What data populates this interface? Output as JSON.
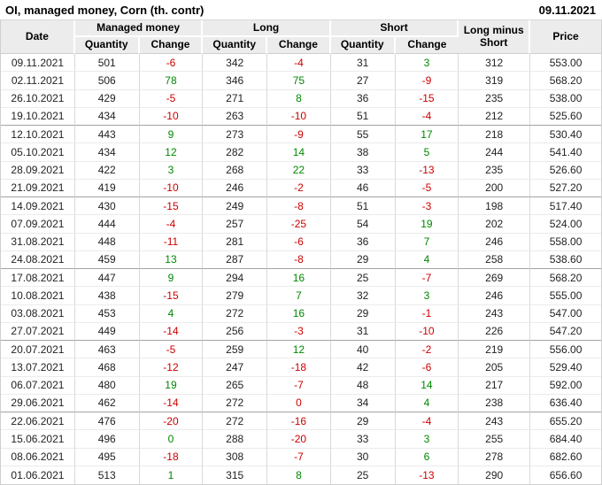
{
  "header": {
    "title": "OI, managed money, Corn (th. contr)",
    "report_date": "09.11.2021"
  },
  "colors": {
    "positive": "#008800",
    "negative": "#cc0000",
    "header_bg": "#ececec"
  },
  "table": {
    "head": {
      "date": "Date",
      "managed_money": "Managed money",
      "long": "Long",
      "short": "Short",
      "long_minus_short": "Long minus Short",
      "price": "Price",
      "quantity": "Quantity",
      "change": "Change"
    },
    "group_size": 4,
    "rows": [
      {
        "date": "09.11.2021",
        "cells": [
          [
            "501"
          ],
          [
            "-6",
            "neg"
          ],
          [
            "342"
          ],
          [
            "-4",
            "neg"
          ],
          [
            "31"
          ],
          [
            "3",
            "pos"
          ],
          [
            "312"
          ],
          [
            "553.00"
          ]
        ]
      },
      {
        "date": "02.11.2021",
        "cells": [
          [
            "506"
          ],
          [
            "78",
            "pos"
          ],
          [
            "346"
          ],
          [
            "75",
            "pos"
          ],
          [
            "27"
          ],
          [
            "-9",
            "neg"
          ],
          [
            "319"
          ],
          [
            "568.20"
          ]
        ]
      },
      {
        "date": "26.10.2021",
        "cells": [
          [
            "429"
          ],
          [
            "-5",
            "neg"
          ],
          [
            "271"
          ],
          [
            "8",
            "pos"
          ],
          [
            "36"
          ],
          [
            "-15",
            "neg"
          ],
          [
            "235"
          ],
          [
            "538.00"
          ]
        ]
      },
      {
        "date": "19.10.2021",
        "cells": [
          [
            "434"
          ],
          [
            "-10",
            "neg"
          ],
          [
            "263"
          ],
          [
            "-10",
            "neg"
          ],
          [
            "51"
          ],
          [
            "-4",
            "neg"
          ],
          [
            "212"
          ],
          [
            "525.60"
          ]
        ]
      },
      {
        "date": "12.10.2021",
        "cells": [
          [
            "443"
          ],
          [
            "9",
            "pos"
          ],
          [
            "273"
          ],
          [
            "-9",
            "neg"
          ],
          [
            "55"
          ],
          [
            "17",
            "pos"
          ],
          [
            "218"
          ],
          [
            "530.40"
          ]
        ]
      },
      {
        "date": "05.10.2021",
        "cells": [
          [
            "434"
          ],
          [
            "12",
            "pos"
          ],
          [
            "282"
          ],
          [
            "14",
            "pos"
          ],
          [
            "38"
          ],
          [
            "5",
            "pos"
          ],
          [
            "244"
          ],
          [
            "541.40"
          ]
        ]
      },
      {
        "date": "28.09.2021",
        "cells": [
          [
            "422"
          ],
          [
            "3",
            "pos"
          ],
          [
            "268"
          ],
          [
            "22",
            "pos"
          ],
          [
            "33"
          ],
          [
            "-13",
            "neg"
          ],
          [
            "235"
          ],
          [
            "526.60"
          ]
        ]
      },
      {
        "date": "21.09.2021",
        "cells": [
          [
            "419"
          ],
          [
            "-10",
            "neg"
          ],
          [
            "246"
          ],
          [
            "-2",
            "neg"
          ],
          [
            "46"
          ],
          [
            "-5",
            "neg"
          ],
          [
            "200"
          ],
          [
            "527.20"
          ]
        ]
      },
      {
        "date": "14.09.2021",
        "cells": [
          [
            "430"
          ],
          [
            "-15",
            "neg"
          ],
          [
            "249"
          ],
          [
            "-8",
            "neg"
          ],
          [
            "51"
          ],
          [
            "-3",
            "neg"
          ],
          [
            "198"
          ],
          [
            "517.40"
          ]
        ]
      },
      {
        "date": "07.09.2021",
        "cells": [
          [
            "444"
          ],
          [
            "-4",
            "neg"
          ],
          [
            "257"
          ],
          [
            "-25",
            "neg"
          ],
          [
            "54"
          ],
          [
            "19",
            "pos"
          ],
          [
            "202"
          ],
          [
            "524.00"
          ]
        ]
      },
      {
        "date": "31.08.2021",
        "cells": [
          [
            "448"
          ],
          [
            "-11",
            "neg"
          ],
          [
            "281"
          ],
          [
            "-6",
            "neg"
          ],
          [
            "36"
          ],
          [
            "7",
            "pos"
          ],
          [
            "246"
          ],
          [
            "558.00"
          ]
        ]
      },
      {
        "date": "24.08.2021",
        "cells": [
          [
            "459"
          ],
          [
            "13",
            "pos"
          ],
          [
            "287"
          ],
          [
            "-8",
            "neg"
          ],
          [
            "29"
          ],
          [
            "4",
            "pos"
          ],
          [
            "258"
          ],
          [
            "538.60"
          ]
        ]
      },
      {
        "date": "17.08.2021",
        "cells": [
          [
            "447"
          ],
          [
            "9",
            "pos"
          ],
          [
            "294"
          ],
          [
            "16",
            "pos"
          ],
          [
            "25"
          ],
          [
            "-7",
            "neg"
          ],
          [
            "269"
          ],
          [
            "568.20"
          ]
        ]
      },
      {
        "date": "10.08.2021",
        "cells": [
          [
            "438"
          ],
          [
            "-15",
            "neg"
          ],
          [
            "279"
          ],
          [
            "7",
            "pos"
          ],
          [
            "32"
          ],
          [
            "3",
            "pos"
          ],
          [
            "246"
          ],
          [
            "555.00"
          ]
        ]
      },
      {
        "date": "03.08.2021",
        "cells": [
          [
            "453"
          ],
          [
            "4",
            "pos"
          ],
          [
            "272"
          ],
          [
            "16",
            "pos"
          ],
          [
            "29"
          ],
          [
            "-1",
            "neg"
          ],
          [
            "243"
          ],
          [
            "547.00"
          ]
        ]
      },
      {
        "date": "27.07.2021",
        "cells": [
          [
            "449"
          ],
          [
            "-14",
            "neg"
          ],
          [
            "256"
          ],
          [
            "-3",
            "neg"
          ],
          [
            "31"
          ],
          [
            "-10",
            "neg"
          ],
          [
            "226"
          ],
          [
            "547.20"
          ]
        ]
      },
      {
        "date": "20.07.2021",
        "cells": [
          [
            "463"
          ],
          [
            "-5",
            "neg"
          ],
          [
            "259"
          ],
          [
            "12",
            "pos"
          ],
          [
            "40"
          ],
          [
            "-2",
            "neg"
          ],
          [
            "219"
          ],
          [
            "556.00"
          ]
        ]
      },
      {
        "date": "13.07.2021",
        "cells": [
          [
            "468"
          ],
          [
            "-12",
            "neg"
          ],
          [
            "247"
          ],
          [
            "-18",
            "neg"
          ],
          [
            "42"
          ],
          [
            "-6",
            "neg"
          ],
          [
            "205"
          ],
          [
            "529.40"
          ]
        ]
      },
      {
        "date": "06.07.2021",
        "cells": [
          [
            "480"
          ],
          [
            "19",
            "pos"
          ],
          [
            "265"
          ],
          [
            "-7",
            "neg"
          ],
          [
            "48"
          ],
          [
            "14",
            "pos"
          ],
          [
            "217"
          ],
          [
            "592.00"
          ]
        ]
      },
      {
        "date": "29.06.2021",
        "cells": [
          [
            "462"
          ],
          [
            "-14",
            "neg"
          ],
          [
            "272"
          ],
          [
            "0",
            "neg"
          ],
          [
            "34"
          ],
          [
            "4",
            "pos"
          ],
          [
            "238"
          ],
          [
            "636.40"
          ]
        ]
      },
      {
        "date": "22.06.2021",
        "cells": [
          [
            "476"
          ],
          [
            "-20",
            "neg"
          ],
          [
            "272"
          ],
          [
            "-16",
            "neg"
          ],
          [
            "29"
          ],
          [
            "-4",
            "neg"
          ],
          [
            "243"
          ],
          [
            "655.20"
          ]
        ]
      },
      {
        "date": "15.06.2021",
        "cells": [
          [
            "496"
          ],
          [
            "0",
            "pos"
          ],
          [
            "288"
          ],
          [
            "-20",
            "neg"
          ],
          [
            "33"
          ],
          [
            "3",
            "pos"
          ],
          [
            "255"
          ],
          [
            "684.40"
          ]
        ]
      },
      {
        "date": "08.06.2021",
        "cells": [
          [
            "495"
          ],
          [
            "-18",
            "neg"
          ],
          [
            "308"
          ],
          [
            "-7",
            "neg"
          ],
          [
            "30"
          ],
          [
            "6",
            "pos"
          ],
          [
            "278"
          ],
          [
            "682.60"
          ]
        ]
      },
      {
        "date": "01.06.2021",
        "cells": [
          [
            "513"
          ],
          [
            "1",
            "pos"
          ],
          [
            "315"
          ],
          [
            "8",
            "pos"
          ],
          [
            "25"
          ],
          [
            "-13",
            "neg"
          ],
          [
            "290"
          ],
          [
            "656.60"
          ]
        ]
      }
    ]
  }
}
